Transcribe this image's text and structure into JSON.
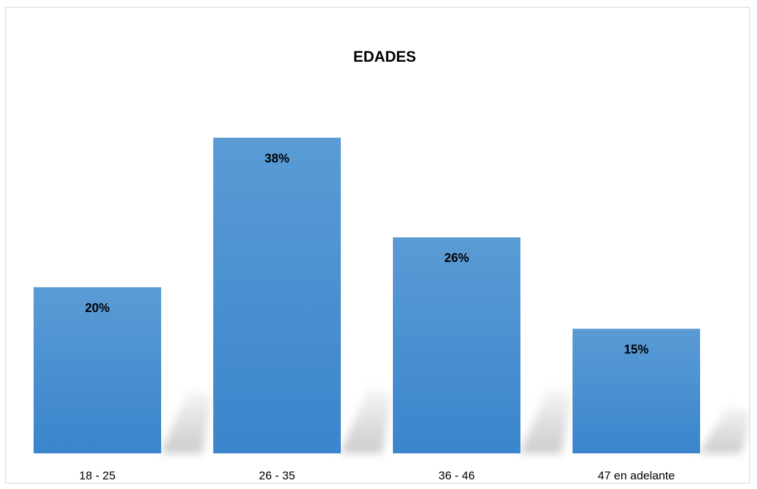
{
  "chart_data": {
    "type": "bar",
    "title": "EDADES",
    "categories": [
      "18 - 25",
      "26 - 35",
      "36 - 46",
      "47 en adelante"
    ],
    "values": [
      20,
      38,
      26,
      15
    ],
    "value_labels": [
      "20%",
      "38%",
      "26%",
      "15%"
    ],
    "xlabel": "",
    "ylabel": "",
    "ylim": [
      0,
      45
    ],
    "grid": false,
    "legend": "none",
    "bar_color_top": "#5a9bd5",
    "bar_color_bottom": "#3a85cc",
    "shadow_color": "#c8c8c8"
  }
}
